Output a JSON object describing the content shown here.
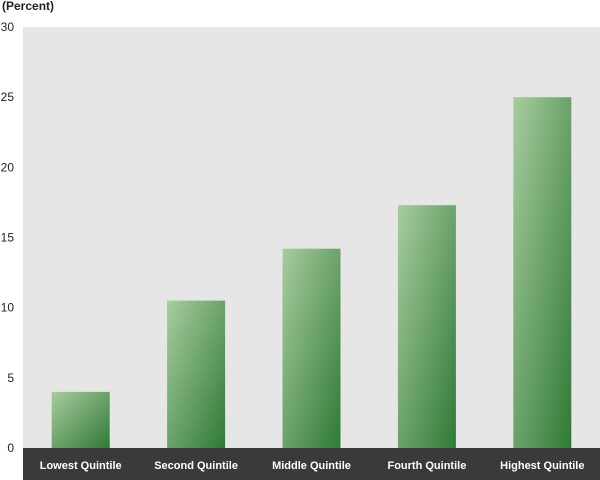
{
  "chart_data": {
    "type": "bar",
    "title": "",
    "unit_label": "(Percent)",
    "xlabel": "",
    "ylabel": "",
    "categories": [
      "Lowest Quintile",
      "Second Quintile",
      "Middle Quintile",
      "Fourth Quintile",
      "Highest Quintile"
    ],
    "values": [
      4.0,
      10.5,
      14.2,
      17.3,
      25.0
    ],
    "ylim": [
      0,
      30
    ],
    "yticks": [
      0,
      5,
      10,
      15,
      20,
      25,
      30
    ],
    "grid": false,
    "legend": "none"
  },
  "colors": {
    "plot_background": "#e6e6e6",
    "category_band": "#3a3a3a",
    "bar_gradient_light": "#a8cc9f",
    "bar_gradient_dark": "#2f7a36",
    "axis_text": "#222222",
    "category_text": "#ffffff"
  }
}
